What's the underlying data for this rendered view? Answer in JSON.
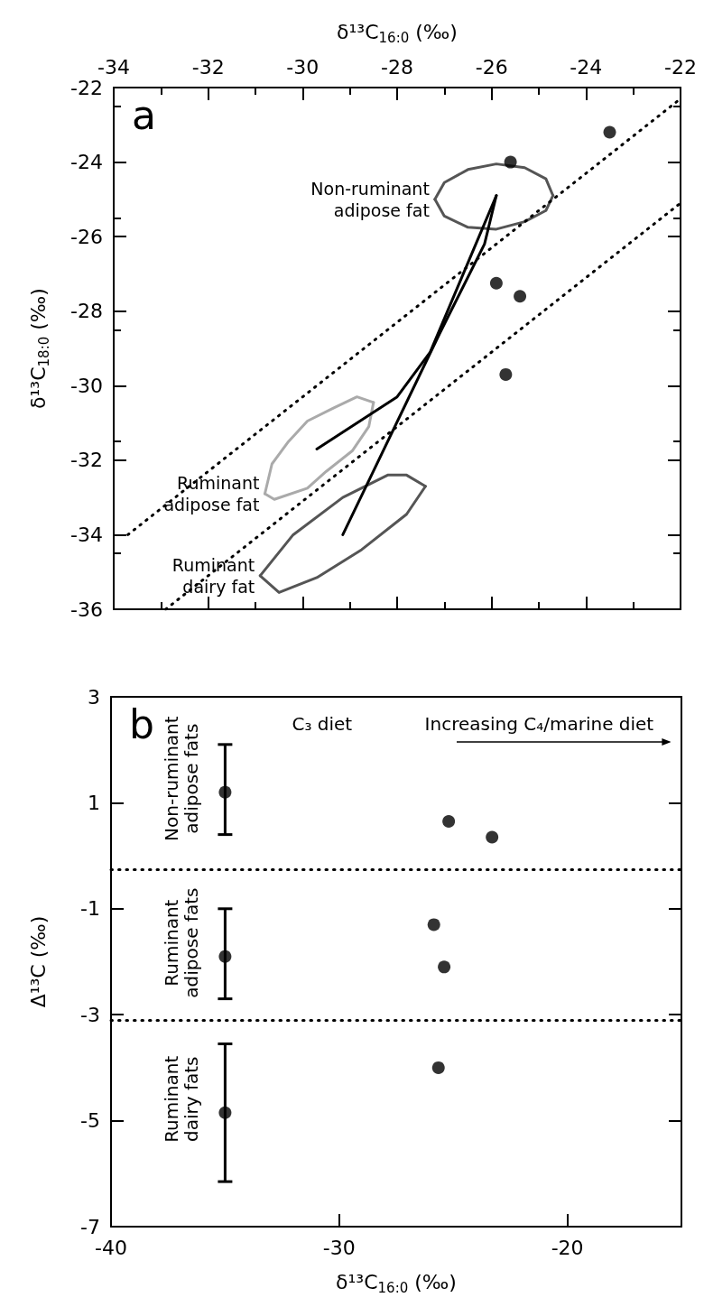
{
  "chart_data": [
    {
      "type": "scatter",
      "xlabel": "δ¹³C$_{16:0}$ (‰)",
      "ylabel": "δ¹³C$_{18:0}$ (‰)",
      "xlim": [
        -34,
        -22
      ],
      "xticks": [
        -34,
        -32,
        -30,
        -28,
        -26,
        -24,
        -22
      ],
      "ylim": [
        -36,
        -22
      ],
      "yticks": [
        -36,
        -34,
        -32,
        -30,
        -28,
        -26,
        -24,
        -22
      ],
      "grid": false,
      "legend": false,
      "marker": "circle",
      "annotations": [
        "a"
      ],
      "series": [
        {
          "color": "#000000",
          "x": [
            -23.5,
            -25.6,
            -25.9,
            -25.4,
            -25.7
          ],
          "values": [
            -23.2,
            -24.0,
            -27.25,
            -27.6,
            -29.7
          ]
        },
        {
          "type": "line",
          "name": "Non-ruminant adipose fat",
          "color": "#555555",
          "marker": "none",
          "line_style": "solid",
          "x": [
            -27.2,
            -27.0,
            -26.5,
            -25.9,
            -25.3,
            -24.85,
            -24.7
          ],
          "values": [
            -25.0,
            -24.55,
            -24.2,
            -24.05,
            -24.15,
            -24.45,
            -24.9
          ]
        },
        {
          "type": "line",
          "color": "#555555",
          "marker": "none",
          "line_style": "solid",
          "x": [
            -27.2,
            -27.0,
            -26.5,
            -25.9,
            -25.3,
            -24.85,
            -24.7
          ],
          "values": [
            -25.0,
            -25.45,
            -25.75,
            -25.8,
            -25.6,
            -25.3,
            -24.9
          ]
        },
        {
          "type": "line",
          "name": "Ruminant adipose fat",
          "color": "#aaaaaa",
          "marker": "none",
          "line_style": "solid",
          "x": [
            -30.8,
            -30.65,
            -30.3,
            -29.9,
            -29.35,
            -28.85,
            -28.5
          ],
          "values": [
            -32.9,
            -32.1,
            -31.5,
            -30.95,
            -30.6,
            -30.3,
            -30.45
          ]
        },
        {
          "type": "line",
          "color": "#aaaaaa",
          "marker": "none",
          "line_style": "solid",
          "x": [
            -30.8,
            -30.6,
            -29.9,
            -29.5,
            -28.95,
            -28.6,
            -28.5
          ],
          "values": [
            -32.9,
            -33.05,
            -32.75,
            -32.3,
            -31.75,
            -31.1,
            -30.45
          ]
        },
        {
          "type": "line",
          "name": "Ruminant dairy fat",
          "color": "#555555",
          "marker": "none",
          "line_style": "solid",
          "x": [
            -30.9,
            -30.2,
            -29.15,
            -28.2,
            -27.8,
            -27.4
          ],
          "values": [
            -35.1,
            -34.0,
            -33.0,
            -32.4,
            -32.4,
            -32.7
          ]
        },
        {
          "type": "line",
          "color": "#555555",
          "marker": "none",
          "line_style": "solid",
          "x": [
            -30.9,
            -30.5,
            -29.7,
            -28.75,
            -27.8,
            -27.4
          ],
          "values": [
            -35.1,
            -35.55,
            -35.15,
            -34.4,
            -33.45,
            -32.7
          ]
        },
        {
          "type": "line",
          "color": "#000000",
          "marker": "none",
          "line_style": "solid",
          "x": [
            -29.7,
            -28.0,
            -27.3,
            -26.4,
            -25.9
          ],
          "values": [
            -31.7,
            -30.3,
            -29.1,
            -26.4,
            -24.9
          ]
        },
        {
          "type": "line",
          "color": "#000000",
          "marker": "none",
          "line_style": "solid",
          "x": [
            -29.15,
            -27.1,
            -26.15,
            -25.9
          ],
          "values": [
            -34.0,
            -28.6,
            -26.2,
            -24.9
          ]
        },
        {
          "type": "line",
          "color": "#000000",
          "marker": "none",
          "line_style": "dotted",
          "x": [
            -33.7,
            -22.0
          ],
          "values": [
            -34.0,
            -22.3
          ]
        },
        {
          "type": "line",
          "color": "#000000",
          "marker": "none",
          "line_style": "dotted",
          "x": [
            -32.9,
            -22.0
          ],
          "values": [
            -36.0,
            -25.1
          ]
        }
      ]
    },
    {
      "type": "scatter",
      "xlabel": "δ¹³C$_{16:0}$ (‰)",
      "ylabel": "Δ¹³C (‰)",
      "xlim": [
        -40,
        -15
      ],
      "xticks": [
        -40,
        -30,
        -20
      ],
      "ylim": [
        -7,
        3
      ],
      "yticks": [
        -7,
        -5,
        -3,
        -1,
        1,
        3
      ],
      "grid": false,
      "legend": false,
      "marker": "circle",
      "annotations": [
        "b",
        "C₃ diet",
        "Increasing C₄/marine diet",
        "Non-ruminant adipose fats",
        "Ruminant adipose fats",
        "Ruminant dairy fats"
      ],
      "ref_lines": [
        {
          "axis": "y",
          "value": -0.25,
          "color": "#000000",
          "line_style": "dotted"
        },
        {
          "axis": "y",
          "value": -3.1,
          "color": "#000000",
          "line_style": "dotted"
        }
      ],
      "series": [
        {
          "color": "#000000",
          "x": [
            -35,
            -35,
            -35
          ],
          "values": [
            1.2,
            -1.9,
            -4.85
          ],
          "errors": [
            [
              0.4,
              2.1
            ],
            [
              -2.7,
              -1.0
            ],
            [
              -6.15,
              -3.55
            ]
          ]
        },
        {
          "color": "#000000",
          "x": [
            -25.2,
            -23.3,
            -25.85,
            -25.4,
            -25.65
          ],
          "values": [
            0.65,
            0.35,
            -1.3,
            -2.1,
            -4.0
          ]
        }
      ]
    }
  ]
}
